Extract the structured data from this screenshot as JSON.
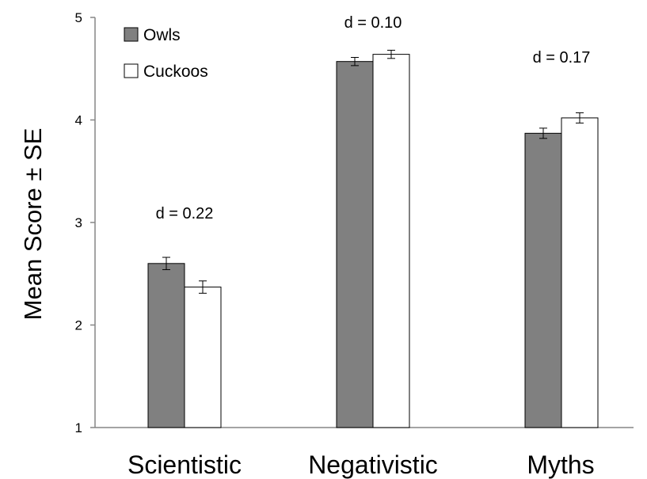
{
  "chart_data": {
    "type": "bar",
    "title": "",
    "xlabel": "",
    "ylabel": "Mean Score ± SE",
    "ylim": [
      1,
      5
    ],
    "yticks": [
      "1",
      "2",
      "3",
      "4",
      "5"
    ],
    "categories": [
      "Scientistic",
      "Negativistic",
      "Myths"
    ],
    "series": [
      {
        "name": "Owls",
        "values": [
          2.6,
          4.57,
          3.87
        ],
        "errors": [
          0.06,
          0.04,
          0.05
        ],
        "color": "#808080"
      },
      {
        "name": "Cuckoos",
        "values": [
          2.37,
          4.64,
          4.02
        ],
        "errors": [
          0.06,
          0.04,
          0.05
        ],
        "color": "#ffffff"
      }
    ],
    "annotations": [
      "d = 0.22",
      "d = 0.10",
      "d = 0.17"
    ],
    "legend_position": "top-left",
    "grid": false
  }
}
